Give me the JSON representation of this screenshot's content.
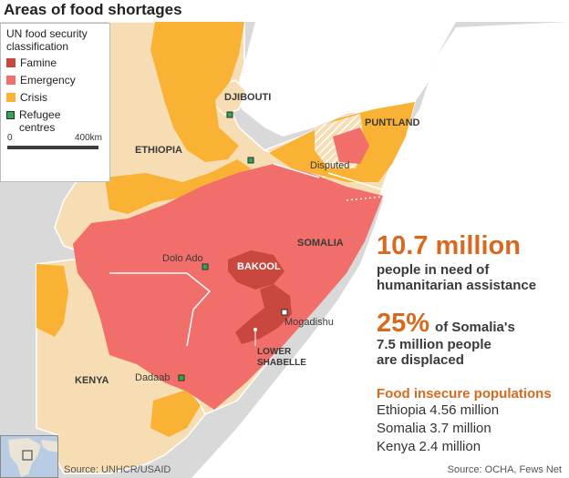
{
  "title": "Areas of food shortages",
  "colors": {
    "famine": "#c8473f",
    "emergency": "#f26e6a",
    "crisis": "#f9b233",
    "land": "#f7ddb3",
    "background": "#d9d9d9",
    "refugee": "#2fa84f",
    "accent": "#d8691f"
  },
  "legend": {
    "title": "UN food security classification",
    "items": [
      {
        "label": "Famine",
        "color": "#c8473f"
      },
      {
        "label": "Emergency",
        "color": "#f26e6a"
      },
      {
        "label": "Crisis",
        "color": "#f9b233"
      },
      {
        "label": "Refugee centres",
        "color": "#2fa84f"
      }
    ]
  },
  "scale": {
    "start": "0",
    "end": "400km"
  },
  "map": {
    "regions": {
      "djibouti": "DJIBOUTI",
      "ethiopia": "ETHIOPIA",
      "puntland": "PUNTLAND",
      "disputed": "Disputed",
      "somalia": "SOMALIA",
      "bakool": "BAKOOL",
      "kenya": "KENYA",
      "lower_shabelle_1": "LOWER",
      "lower_shabelle_2": "SHABELLE"
    },
    "places": {
      "dolo_ado": "Dolo Ado",
      "mogadishu": "Mogadishu",
      "dadaab": "Dadaab"
    }
  },
  "stats": {
    "people_in_need": {
      "value": "10.7 million",
      "line1": "people in need of",
      "line2": "humanitarian assistance"
    },
    "displaced": {
      "value": "25%",
      "line1": "of Somalia's",
      "line2": "7.5 million people",
      "line3": "are displaced"
    }
  },
  "food_insecure": {
    "title": "Food insecure populations",
    "rows": [
      {
        "country": "Ethiopia",
        "value": "4.56 million"
      },
      {
        "country": "Somalia",
        "value": "3.7 million"
      },
      {
        "country": "Kenya",
        "value": "2.4 million"
      }
    ]
  },
  "sources": {
    "left": "Source: UNHCR/USAID",
    "right": "Source: OCHA, Fews Net"
  }
}
